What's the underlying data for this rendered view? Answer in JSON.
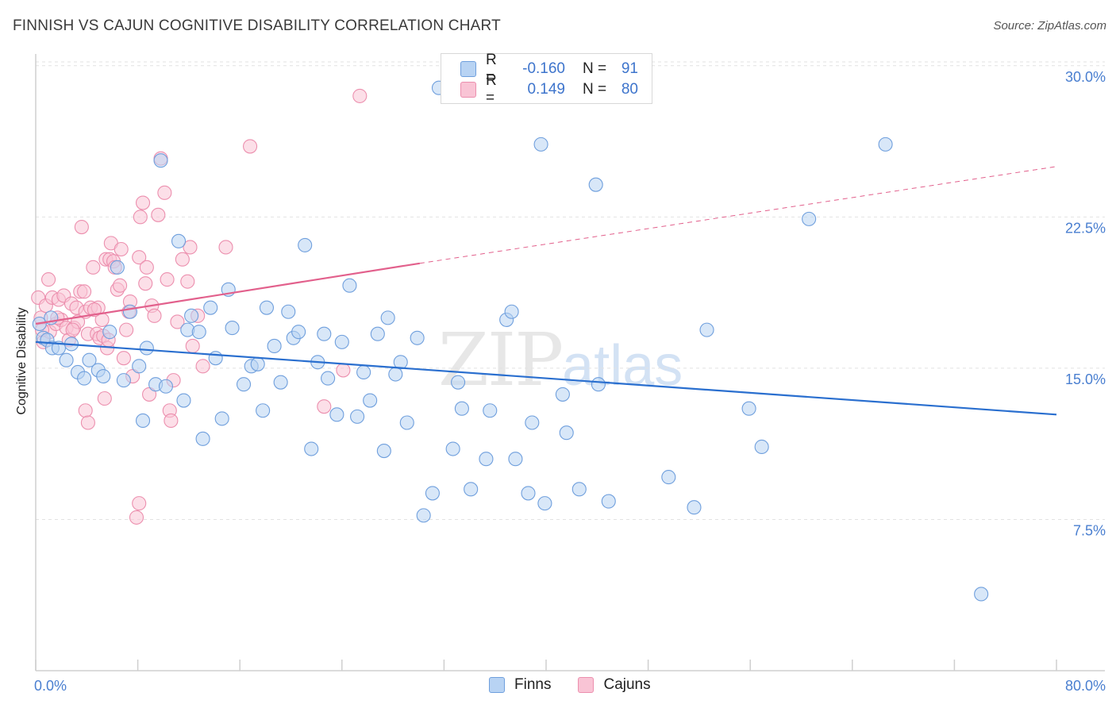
{
  "title": "FINNISH VS CAJUN COGNITIVE DISABILITY CORRELATION CHART",
  "source": "Source: ZipAtlas.com",
  "watermark": {
    "zip": "ZIP",
    "atlas": "atlas"
  },
  "colors": {
    "finns_fill": "#b8d3f3",
    "finns_stroke": "#6f9fdd",
    "finns_line": "#2a6fcf",
    "cajuns_fill": "#f9c4d5",
    "cajuns_stroke": "#ec8fae",
    "cajuns_line": "#e2608c",
    "tick_label": "#4a7fd0",
    "grid": "#e2e2e2"
  },
  "legend_top": [
    {
      "r_label": "R =",
      "r_value": "-0.160",
      "n_label": "N =",
      "n_value": "91"
    },
    {
      "r_label": "R =",
      "r_value": "0.149",
      "n_label": "N =",
      "n_value": "80"
    }
  ],
  "legend_bottom": [
    {
      "label": "Finns"
    },
    {
      "label": "Cajuns"
    }
  ],
  "chart_data": {
    "type": "scatter",
    "title": "FINNISH VS CAJUN COGNITIVE DISABILITY CORRELATION CHART",
    "xlabel": "",
    "ylabel": "Cognitive Disability",
    "xlim": [
      0,
      80
    ],
    "ylim": [
      0,
      30.7
    ],
    "x_tick_labels": [
      "0.0%",
      "80.0%"
    ],
    "y_ticks": [
      7.5,
      15.0,
      22.5,
      30.0
    ],
    "y_tick_labels": [
      "7.5%",
      "15.0%",
      "22.5%",
      "30.0%"
    ],
    "grid": "horizontal dashed",
    "legend_position": "top-center and bottom",
    "series": [
      {
        "name": "Finns",
        "r": -0.16,
        "n": 91,
        "trend": {
          "x": [
            0,
            80
          ],
          "y": [
            16.3,
            12.7
          ]
        },
        "points": [
          [
            0.3,
            17.2
          ],
          [
            0.6,
            16.5
          ],
          [
            0.9,
            16.4
          ],
          [
            1.2,
            17.5
          ],
          [
            1.3,
            16.0
          ],
          [
            1.8,
            16.0
          ],
          [
            2.4,
            15.4
          ],
          [
            2.8,
            16.2
          ],
          [
            3.3,
            14.8
          ],
          [
            3.8,
            14.5
          ],
          [
            4.2,
            15.4
          ],
          [
            4.9,
            14.9
          ],
          [
            5.3,
            14.6
          ],
          [
            5.8,
            16.8
          ],
          [
            6.4,
            20.0
          ],
          [
            6.9,
            14.4
          ],
          [
            7.4,
            17.8
          ],
          [
            8.1,
            15.1
          ],
          [
            8.4,
            12.4
          ],
          [
            8.7,
            16.0
          ],
          [
            9.4,
            14.2
          ],
          [
            9.8,
            25.3
          ],
          [
            10.2,
            14.1
          ],
          [
            11.2,
            21.3
          ],
          [
            11.6,
            13.4
          ],
          [
            11.9,
            16.9
          ],
          [
            12.2,
            17.6
          ],
          [
            12.8,
            16.8
          ],
          [
            13.1,
            11.5
          ],
          [
            13.7,
            18.0
          ],
          [
            14.1,
            15.5
          ],
          [
            14.6,
            12.5
          ],
          [
            15.1,
            18.9
          ],
          [
            15.4,
            17.0
          ],
          [
            16.3,
            14.2
          ],
          [
            16.9,
            15.1
          ],
          [
            17.4,
            15.2
          ],
          [
            17.8,
            12.9
          ],
          [
            18.1,
            18.0
          ],
          [
            18.7,
            16.1
          ],
          [
            19.2,
            14.3
          ],
          [
            19.8,
            17.8
          ],
          [
            20.2,
            16.5
          ],
          [
            20.6,
            16.8
          ],
          [
            21.1,
            21.1
          ],
          [
            21.6,
            11.0
          ],
          [
            22.1,
            15.3
          ],
          [
            22.6,
            16.7
          ],
          [
            22.9,
            14.5
          ],
          [
            23.6,
            12.7
          ],
          [
            24.0,
            16.3
          ],
          [
            24.6,
            19.1
          ],
          [
            25.2,
            12.6
          ],
          [
            25.7,
            14.8
          ],
          [
            26.2,
            13.4
          ],
          [
            26.8,
            16.7
          ],
          [
            27.3,
            10.9
          ],
          [
            27.6,
            17.5
          ],
          [
            28.2,
            14.7
          ],
          [
            28.6,
            15.3
          ],
          [
            29.1,
            12.3
          ],
          [
            29.9,
            16.5
          ],
          [
            30.4,
            7.7
          ],
          [
            31.1,
            8.8
          ],
          [
            31.6,
            28.9
          ],
          [
            32.7,
            11.0
          ],
          [
            33.1,
            14.3
          ],
          [
            33.4,
            13.0
          ],
          [
            34.1,
            9.0
          ],
          [
            35.3,
            10.5
          ],
          [
            35.6,
            12.9
          ],
          [
            36.9,
            17.4
          ],
          [
            37.6,
            10.5
          ],
          [
            37.3,
            17.8
          ],
          [
            38.6,
            8.8
          ],
          [
            38.9,
            12.3
          ],
          [
            39.6,
            26.1
          ],
          [
            39.9,
            8.3
          ],
          [
            41.6,
            11.8
          ],
          [
            41.3,
            13.7
          ],
          [
            42.6,
            9.0
          ],
          [
            43.9,
            24.1
          ],
          [
            44.1,
            14.2
          ],
          [
            44.9,
            8.4
          ],
          [
            49.6,
            9.6
          ],
          [
            51.6,
            8.1
          ],
          [
            52.6,
            16.9
          ],
          [
            55.9,
            13.0
          ],
          [
            56.9,
            11.1
          ],
          [
            60.6,
            22.4
          ],
          [
            66.6,
            26.1
          ],
          [
            74.1,
            3.8
          ]
        ]
      },
      {
        "name": "Cajuns",
        "r": 0.149,
        "n": 80,
        "trend": {
          "x": [
            0,
            30.1
          ],
          "y": [
            17.2,
            20.2
          ],
          "x_ext": [
            30.1,
            80
          ],
          "y_ext": [
            20.2,
            25.0
          ]
        },
        "points": [
          [
            0.2,
            18.5
          ],
          [
            0.4,
            17.5
          ],
          [
            0.6,
            16.3
          ],
          [
            0.8,
            18.1
          ],
          [
            1.0,
            19.4
          ],
          [
            1.1,
            16.8
          ],
          [
            1.3,
            18.5
          ],
          [
            1.6,
            17.2
          ],
          [
            1.8,
            18.4
          ],
          [
            2.0,
            17.4
          ],
          [
            2.2,
            18.6
          ],
          [
            2.4,
            17.0
          ],
          [
            2.6,
            16.4
          ],
          [
            2.8,
            18.2
          ],
          [
            3.0,
            17.0
          ],
          [
            3.2,
            18.0
          ],
          [
            3.3,
            17.3
          ],
          [
            3.5,
            18.8
          ],
          [
            3.6,
            22.0
          ],
          [
            3.8,
            18.8
          ],
          [
            3.9,
            17.8
          ],
          [
            4.1,
            16.7
          ],
          [
            4.3,
            18.0
          ],
          [
            4.5,
            20.0
          ],
          [
            4.8,
            16.7
          ],
          [
            4.9,
            18.0
          ],
          [
            5.0,
            16.5
          ],
          [
            5.2,
            17.4
          ],
          [
            5.3,
            16.6
          ],
          [
            5.5,
            20.4
          ],
          [
            5.6,
            16.0
          ],
          [
            5.8,
            20.4
          ],
          [
            5.9,
            21.2
          ],
          [
            6.1,
            20.3
          ],
          [
            6.2,
            20.0
          ],
          [
            6.4,
            18.9
          ],
          [
            6.7,
            20.9
          ],
          [
            6.9,
            15.5
          ],
          [
            7.1,
            16.9
          ],
          [
            7.3,
            17.8
          ],
          [
            7.6,
            14.6
          ],
          [
            8.1,
            20.5
          ],
          [
            8.2,
            22.5
          ],
          [
            8.4,
            23.2
          ],
          [
            8.6,
            19.2
          ],
          [
            8.7,
            20.0
          ],
          [
            8.9,
            13.7
          ],
          [
            9.1,
            18.1
          ],
          [
            9.3,
            17.6
          ],
          [
            9.6,
            22.6
          ],
          [
            9.8,
            25.4
          ],
          [
            10.1,
            23.7
          ],
          [
            10.3,
            19.4
          ],
          [
            10.5,
            12.9
          ],
          [
            10.8,
            14.4
          ],
          [
            11.1,
            17.3
          ],
          [
            11.9,
            19.3
          ],
          [
            12.3,
            16.1
          ],
          [
            12.7,
            17.6
          ],
          [
            13.1,
            15.1
          ],
          [
            3.9,
            12.9
          ],
          [
            4.1,
            12.3
          ],
          [
            5.4,
            13.5
          ],
          [
            8.1,
            8.3
          ],
          [
            7.9,
            7.6
          ],
          [
            14.9,
            21.0
          ],
          [
            16.8,
            26.0
          ],
          [
            22.6,
            13.1
          ],
          [
            24.1,
            14.9
          ],
          [
            25.4,
            28.5
          ],
          [
            0.5,
            16.9
          ],
          [
            1.7,
            17.5
          ],
          [
            2.9,
            16.9
          ],
          [
            4.6,
            17.9
          ],
          [
            5.7,
            16.4
          ],
          [
            6.6,
            19.1
          ],
          [
            7.4,
            18.3
          ],
          [
            10.6,
            12.4
          ],
          [
            11.5,
            20.4
          ],
          [
            12.1,
            21.0
          ]
        ]
      }
    ]
  }
}
